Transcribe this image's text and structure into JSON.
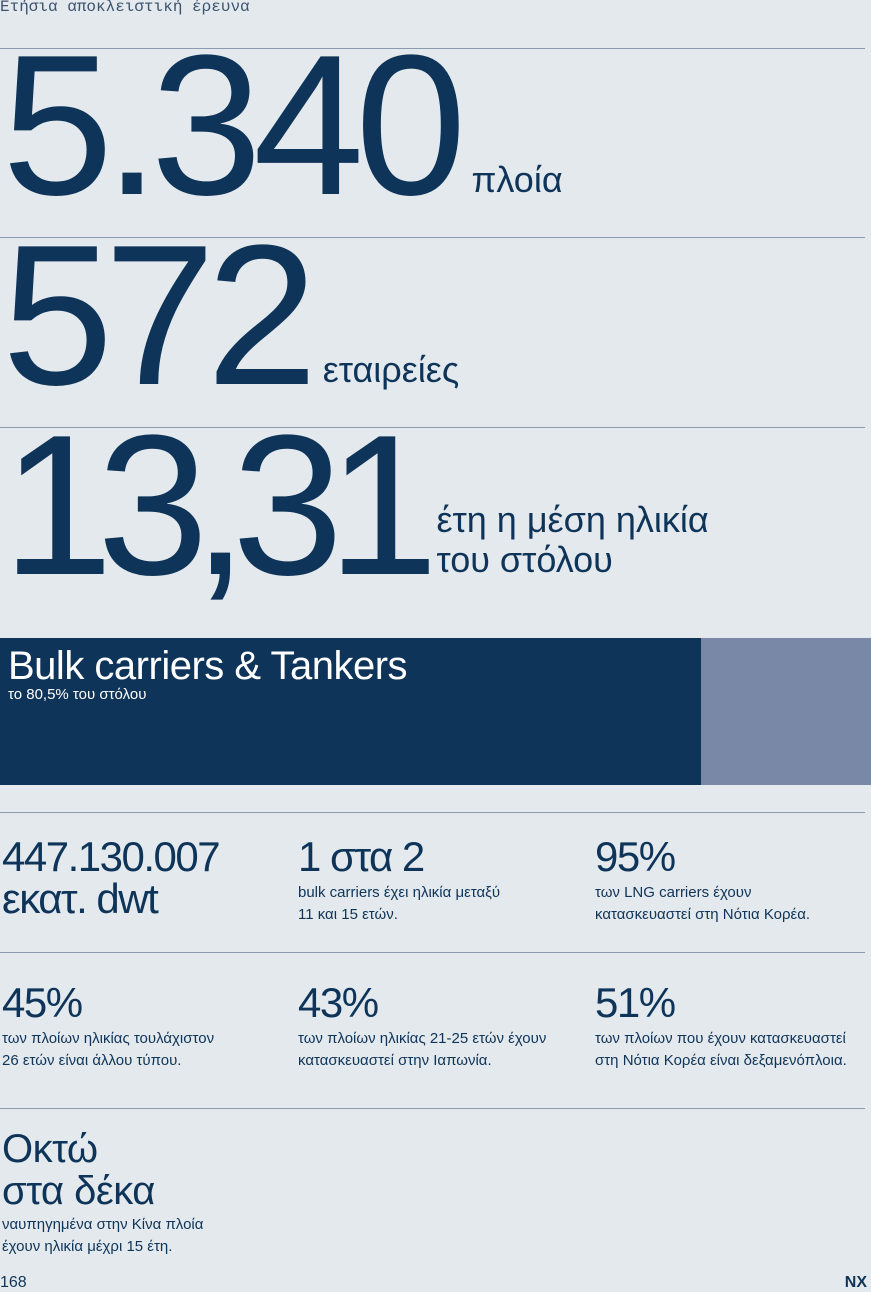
{
  "header": {
    "kicker": "Ετήσια αποκλειστική έρευνα"
  },
  "headline_stats": [
    {
      "value": "5.340",
      "label_lines": [
        "πλοία"
      ]
    },
    {
      "value": "572",
      "label_lines": [
        "εταιρείες"
      ]
    },
    {
      "value": "13,31",
      "label_lines": [
        "έτη η μέση ηλικία",
        "του στόλου"
      ]
    }
  ],
  "share_bar": {
    "title": "Bulk carriers & Tankers",
    "subtitle": "το 80,5% του στόλου",
    "value": 80.5
  },
  "stats": [
    {
      "value_lines": [
        "447.130.007",
        "εκατ. dwt"
      ],
      "description_lines": []
    },
    {
      "value_lines": [
        "1 στα 2"
      ],
      "description_lines": [
        "bulk carriers έχει ηλικία μεταξύ",
        "11 και 15 ετών."
      ]
    },
    {
      "value_lines": [
        "95%"
      ],
      "description_lines": [
        "των LNG carriers έχουν",
        "κατασκευαστεί στη Νότια Κορέα."
      ]
    },
    {
      "value_lines": [
        "45%"
      ],
      "description_lines": [
        "των πλοίων ηλικίας τουλάχιστον",
        "26 ετών είναι άλλου τύπου."
      ]
    },
    {
      "value_lines": [
        "43%"
      ],
      "description_lines": [
        "των πλοίων ηλικίας 21-25 ετών έχουν",
        "κατασκευαστεί στην Ιαπωνία."
      ]
    },
    {
      "value_lines": [
        "51%"
      ],
      "description_lines": [
        "των πλοίων που έχουν κατασκευαστεί",
        "στη Νότια Κορέα είναι δεξαμενόπλοια."
      ]
    }
  ],
  "feature": {
    "value_lines": [
      "Οκτώ",
      "στα δέκα"
    ],
    "description_lines": [
      "ναυπηγημένα στην Κίνα πλοία",
      "έχουν ηλικία μέχρι 15 έτη."
    ]
  },
  "footer": {
    "page_number": "168",
    "logo": "NX"
  }
}
